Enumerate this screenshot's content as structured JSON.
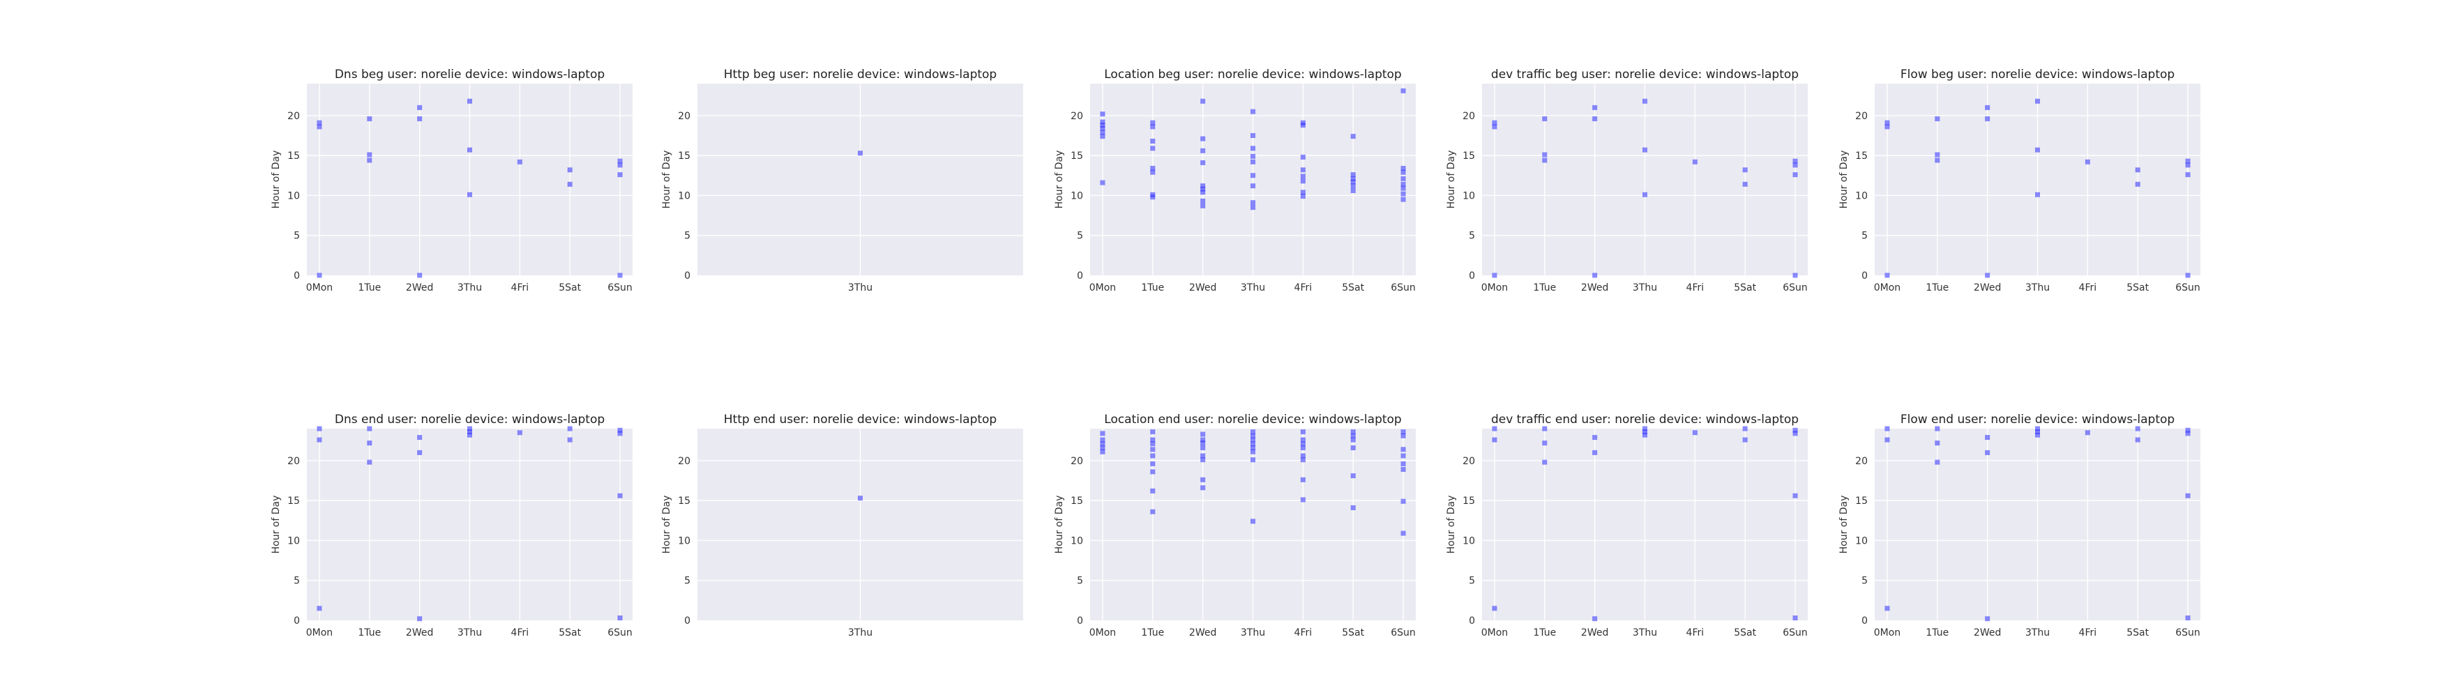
{
  "chart_data": [
    {
      "type": "scatter",
      "title": "Dns beg user: norelie device: windows-laptop",
      "ylabel": "Hour of Day",
      "ylim": [
        0,
        24
      ],
      "yticks": [
        0,
        5,
        10,
        15,
        20
      ],
      "xticks": [
        "0Mon",
        "1Tue",
        "2Wed",
        "3Thu",
        "4Fri",
        "5Sat",
        "6Sun"
      ],
      "xlim": [
        -0.25,
        6.25
      ],
      "grid": true,
      "points": [
        [
          0,
          0
        ],
        [
          0,
          18.6
        ],
        [
          0,
          19.1
        ],
        [
          1,
          14.4
        ],
        [
          1,
          15.1
        ],
        [
          1,
          19.6
        ],
        [
          2,
          0
        ],
        [
          2,
          19.6
        ],
        [
          2,
          21
        ],
        [
          3,
          10.1
        ],
        [
          3,
          15.7
        ],
        [
          3,
          21.8
        ],
        [
          4,
          14.2
        ],
        [
          5,
          11.4
        ],
        [
          5,
          13.2
        ],
        [
          6,
          0
        ],
        [
          6,
          12.6
        ],
        [
          6,
          13.8
        ],
        [
          6,
          14.3
        ]
      ]
    },
    {
      "type": "scatter",
      "title": "Http beg user: norelie device: windows-laptop",
      "ylabel": "Hour of Day",
      "ylim": [
        0,
        24
      ],
      "yticks": [
        0,
        5,
        10,
        15,
        20
      ],
      "xticks": [
        "3Thu"
      ],
      "xlim": [
        2.94,
        3.06
      ],
      "grid": true,
      "points": [
        [
          3,
          15.3
        ]
      ]
    },
    {
      "type": "scatter",
      "title": "Location beg user: norelie device: windows-laptop",
      "ylabel": "Hour of Day",
      "ylim": [
        0,
        24
      ],
      "yticks": [
        0,
        5,
        10,
        15,
        20
      ],
      "xticks": [
        "0Mon",
        "1Tue",
        "2Wed",
        "3Thu",
        "4Fri",
        "5Sat",
        "6Sun"
      ],
      "xlim": [
        -0.25,
        6.25
      ],
      "grid": true,
      "points": [
        [
          0,
          11.6
        ],
        [
          0,
          17.4
        ],
        [
          0,
          17.9
        ],
        [
          0,
          18.4
        ],
        [
          0,
          18.8
        ],
        [
          0,
          19.2
        ],
        [
          0,
          20.2
        ],
        [
          1,
          9.8
        ],
        [
          1,
          10.1
        ],
        [
          1,
          12.9
        ],
        [
          1,
          13.4
        ],
        [
          1,
          15.9
        ],
        [
          1,
          16.8
        ],
        [
          1,
          18.6
        ],
        [
          1,
          19.1
        ],
        [
          2,
          8.7
        ],
        [
          2,
          9.3
        ],
        [
          2,
          10.4
        ],
        [
          2,
          10.8
        ],
        [
          2,
          11.2
        ],
        [
          2,
          14.1
        ],
        [
          2,
          15.6
        ],
        [
          2,
          17.1
        ],
        [
          2,
          21.8
        ],
        [
          3,
          8.5
        ],
        [
          3,
          9.1
        ],
        [
          3,
          11.2
        ],
        [
          3,
          12.5
        ],
        [
          3,
          14.2
        ],
        [
          3,
          14.9
        ],
        [
          3,
          15.9
        ],
        [
          3,
          17.5
        ],
        [
          3,
          20.5
        ],
        [
          4,
          9.9
        ],
        [
          4,
          10.4
        ],
        [
          4,
          11.8
        ],
        [
          4,
          12.4
        ],
        [
          4,
          13.2
        ],
        [
          4,
          14.8
        ],
        [
          4,
          18.8
        ],
        [
          4,
          19.1
        ],
        [
          5,
          10.6
        ],
        [
          5,
          11.2
        ],
        [
          5,
          11.7
        ],
        [
          5,
          12.1
        ],
        [
          5,
          12.6
        ],
        [
          5,
          17.4
        ],
        [
          6,
          9.5
        ],
        [
          6,
          10.2
        ],
        [
          6,
          10.9
        ],
        [
          6,
          11.4
        ],
        [
          6,
          12.1
        ],
        [
          6,
          12.9
        ],
        [
          6,
          13.4
        ],
        [
          6,
          23.1
        ]
      ]
    },
    {
      "type": "scatter",
      "title": "dev traffic beg user: norelie device: windows-laptop",
      "ylabel": "Hour of Day",
      "ylim": [
        0,
        24
      ],
      "yticks": [
        0,
        5,
        10,
        15,
        20
      ],
      "xticks": [
        "0Mon",
        "1Tue",
        "2Wed",
        "3Thu",
        "4Fri",
        "5Sat",
        "6Sun"
      ],
      "xlim": [
        -0.25,
        6.25
      ],
      "grid": true,
      "points": [
        [
          0,
          0
        ],
        [
          0,
          18.6
        ],
        [
          0,
          19.1
        ],
        [
          1,
          14.4
        ],
        [
          1,
          15.1
        ],
        [
          1,
          19.6
        ],
        [
          2,
          0
        ],
        [
          2,
          19.6
        ],
        [
          2,
          21
        ],
        [
          3,
          10.1
        ],
        [
          3,
          15.7
        ],
        [
          3,
          21.8
        ],
        [
          4,
          14.2
        ],
        [
          5,
          11.4
        ],
        [
          5,
          13.2
        ],
        [
          6,
          0
        ],
        [
          6,
          12.6
        ],
        [
          6,
          13.8
        ],
        [
          6,
          14.3
        ]
      ]
    },
    {
      "type": "scatter",
      "title": "Flow beg user: norelie device: windows-laptop",
      "ylabel": "Hour of Day",
      "ylim": [
        0,
        24
      ],
      "yticks": [
        0,
        5,
        10,
        15,
        20
      ],
      "xticks": [
        "0Mon",
        "1Tue",
        "2Wed",
        "3Thu",
        "4Fri",
        "5Sat",
        "6Sun"
      ],
      "xlim": [
        -0.25,
        6.25
      ],
      "grid": true,
      "points": [
        [
          0,
          0
        ],
        [
          0,
          18.6
        ],
        [
          0,
          19.1
        ],
        [
          1,
          14.4
        ],
        [
          1,
          15.1
        ],
        [
          1,
          19.6
        ],
        [
          2,
          0
        ],
        [
          2,
          19.6
        ],
        [
          2,
          21
        ],
        [
          3,
          10.1
        ],
        [
          3,
          15.7
        ],
        [
          3,
          21.8
        ],
        [
          4,
          14.2
        ],
        [
          5,
          11.4
        ],
        [
          5,
          13.2
        ],
        [
          6,
          0
        ],
        [
          6,
          12.6
        ],
        [
          6,
          13.8
        ],
        [
          6,
          14.3
        ]
      ]
    },
    {
      "type": "scatter",
      "title": "Dns end user: norelie device: windows-laptop",
      "ylabel": "Hour of Day",
      "ylim": [
        0,
        24
      ],
      "yticks": [
        0,
        5,
        10,
        15,
        20
      ],
      "xticks": [
        "0Mon",
        "1Tue",
        "2Wed",
        "3Thu",
        "4Fri",
        "5Sat",
        "6Sun"
      ],
      "xlim": [
        -0.25,
        6.25
      ],
      "grid": true,
      "points": [
        [
          0,
          1.5
        ],
        [
          0,
          22.6
        ],
        [
          0,
          24
        ],
        [
          1,
          19.8
        ],
        [
          1,
          22.2
        ],
        [
          1,
          24
        ],
        [
          2,
          0.2
        ],
        [
          2,
          21
        ],
        [
          2,
          22.9
        ],
        [
          3,
          23.2
        ],
        [
          3,
          23.6
        ],
        [
          3,
          24
        ],
        [
          4,
          23.5
        ],
        [
          5,
          22.6
        ],
        [
          5,
          24
        ],
        [
          6,
          0.3
        ],
        [
          6,
          15.6
        ],
        [
          6,
          23.4
        ],
        [
          6,
          23.8
        ]
      ]
    },
    {
      "type": "scatter",
      "title": "Http end user: norelie device: windows-laptop",
      "ylabel": "Hour of Day",
      "ylim": [
        0,
        24
      ],
      "yticks": [
        0,
        5,
        10,
        15,
        20
      ],
      "xticks": [
        "3Thu"
      ],
      "xlim": [
        2.94,
        3.06
      ],
      "grid": true,
      "points": [
        [
          3,
          15.3
        ]
      ]
    },
    {
      "type": "scatter",
      "title": "Location end user: norelie device: windows-laptop",
      "ylabel": "Hour of Day",
      "ylim": [
        0,
        24
      ],
      "yticks": [
        0,
        5,
        10,
        15,
        20
      ],
      "xticks": [
        "0Mon",
        "1Tue",
        "2Wed",
        "3Thu",
        "4Fri",
        "5Sat",
        "6Sun"
      ],
      "xlim": [
        -0.25,
        6.25
      ],
      "grid": true,
      "points": [
        [
          0,
          21.1
        ],
        [
          0,
          21.6
        ],
        [
          0,
          22.1
        ],
        [
          0,
          22.6
        ],
        [
          0,
          23.4
        ],
        [
          1,
          13.6
        ],
        [
          1,
          16.2
        ],
        [
          1,
          18.6
        ],
        [
          1,
          19.6
        ],
        [
          1,
          20.6
        ],
        [
          1,
          21.4
        ],
        [
          1,
          22.1
        ],
        [
          1,
          22.6
        ],
        [
          1,
          23.6
        ],
        [
          2,
          16.6
        ],
        [
          2,
          17.6
        ],
        [
          2,
          20.1
        ],
        [
          2,
          20.6
        ],
        [
          2,
          21.6
        ],
        [
          2,
          22.2
        ],
        [
          2,
          22.6
        ],
        [
          2,
          23.3
        ],
        [
          3,
          12.4
        ],
        [
          3,
          20.1
        ],
        [
          3,
          21.1
        ],
        [
          3,
          21.6
        ],
        [
          3,
          22.1
        ],
        [
          3,
          22.6
        ],
        [
          3,
          23.1
        ],
        [
          3,
          23.6
        ],
        [
          4,
          15.1
        ],
        [
          4,
          17.6
        ],
        [
          4,
          20.1
        ],
        [
          4,
          20.6
        ],
        [
          4,
          21.6
        ],
        [
          4,
          22.1
        ],
        [
          4,
          22.6
        ],
        [
          4,
          23.6
        ],
        [
          5,
          14.1
        ],
        [
          5,
          18.1
        ],
        [
          5,
          21.6
        ],
        [
          5,
          22.6
        ],
        [
          5,
          23.1
        ],
        [
          5,
          23.6
        ],
        [
          6,
          10.9
        ],
        [
          6,
          14.9
        ],
        [
          6,
          18.9
        ],
        [
          6,
          19.6
        ],
        [
          6,
          20.6
        ],
        [
          6,
          21.4
        ],
        [
          6,
          23.1
        ],
        [
          6,
          23.6
        ]
      ]
    },
    {
      "type": "scatter",
      "title": "dev traffic end user: norelie device: windows-laptop",
      "ylabel": "Hour of Day",
      "ylim": [
        0,
        24
      ],
      "yticks": [
        0,
        5,
        10,
        15,
        20
      ],
      "xticks": [
        "0Mon",
        "1Tue",
        "2Wed",
        "3Thu",
        "4Fri",
        "5Sat",
        "6Sun"
      ],
      "xlim": [
        -0.25,
        6.25
      ],
      "grid": true,
      "points": [
        [
          0,
          1.5
        ],
        [
          0,
          22.6
        ],
        [
          0,
          24
        ],
        [
          1,
          19.8
        ],
        [
          1,
          22.2
        ],
        [
          1,
          24
        ],
        [
          2,
          0.2
        ],
        [
          2,
          21
        ],
        [
          2,
          22.9
        ],
        [
          3,
          23.2
        ],
        [
          3,
          23.6
        ],
        [
          3,
          24
        ],
        [
          4,
          23.5
        ],
        [
          5,
          22.6
        ],
        [
          5,
          24
        ],
        [
          6,
          0.3
        ],
        [
          6,
          15.6
        ],
        [
          6,
          23.4
        ],
        [
          6,
          23.8
        ]
      ]
    },
    {
      "type": "scatter",
      "title": "Flow end user: norelie device: windows-laptop",
      "ylabel": "Hour of Day",
      "ylim": [
        0,
        24
      ],
      "yticks": [
        0,
        5,
        10,
        15,
        20
      ],
      "xticks": [
        "0Mon",
        "1Tue",
        "2Wed",
        "3Thu",
        "4Fri",
        "5Sat",
        "6Sun"
      ],
      "xlim": [
        -0.25,
        6.25
      ],
      "grid": true,
      "points": [
        [
          0,
          1.5
        ],
        [
          0,
          22.6
        ],
        [
          0,
          24
        ],
        [
          1,
          19.8
        ],
        [
          1,
          22.2
        ],
        [
          1,
          24
        ],
        [
          2,
          0.2
        ],
        [
          2,
          21
        ],
        [
          2,
          22.9
        ],
        [
          3,
          23.2
        ],
        [
          3,
          23.6
        ],
        [
          3,
          24
        ],
        [
          4,
          23.5
        ],
        [
          5,
          22.6
        ],
        [
          5,
          24
        ],
        [
          6,
          0.3
        ],
        [
          6,
          15.6
        ],
        [
          6,
          23.4
        ],
        [
          6,
          23.8
        ]
      ]
    }
  ],
  "colors": {
    "marker": "#2b2bff",
    "plot_background": "#eaeaf2",
    "grid": "#ffffff"
  }
}
